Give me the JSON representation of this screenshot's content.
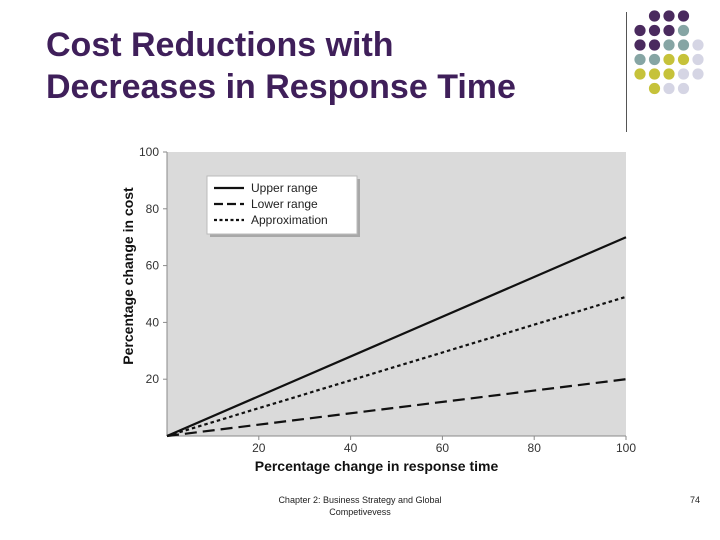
{
  "slide": {
    "title_line1": "Cost Reductions with",
    "title_line2": "Decreases in Response Time",
    "footer_line1": "Chapter 2: Business Strategy and Global",
    "footer_line2": "Competivevess",
    "page_number": "74"
  },
  "colors": {
    "title": "#3f1f5a",
    "dot_purple": "#4a2a5e",
    "dot_teal": "#86a5a4",
    "dot_olive": "#c6c23a",
    "dot_lavender": "#d5d5e4",
    "plot_bg": "#dadada"
  },
  "chart_data": {
    "type": "line",
    "xlabel": "Percentage change in response time",
    "ylabel": "Percentage change in cost",
    "xlim": [
      0,
      100
    ],
    "ylim": [
      0,
      100
    ],
    "x_ticks": [
      20,
      40,
      60,
      80,
      100
    ],
    "y_ticks": [
      20,
      40,
      60,
      80,
      100
    ],
    "grid": false,
    "legend_position": "top-left",
    "x": [
      0,
      100
    ],
    "series": [
      {
        "name": "Upper range",
        "style": "solid",
        "values": [
          0,
          70
        ]
      },
      {
        "name": "Lower range",
        "style": "dashed",
        "values": [
          0,
          20
        ]
      },
      {
        "name": "Approximation",
        "style": "dotted",
        "values": [
          0,
          49
        ]
      }
    ]
  }
}
